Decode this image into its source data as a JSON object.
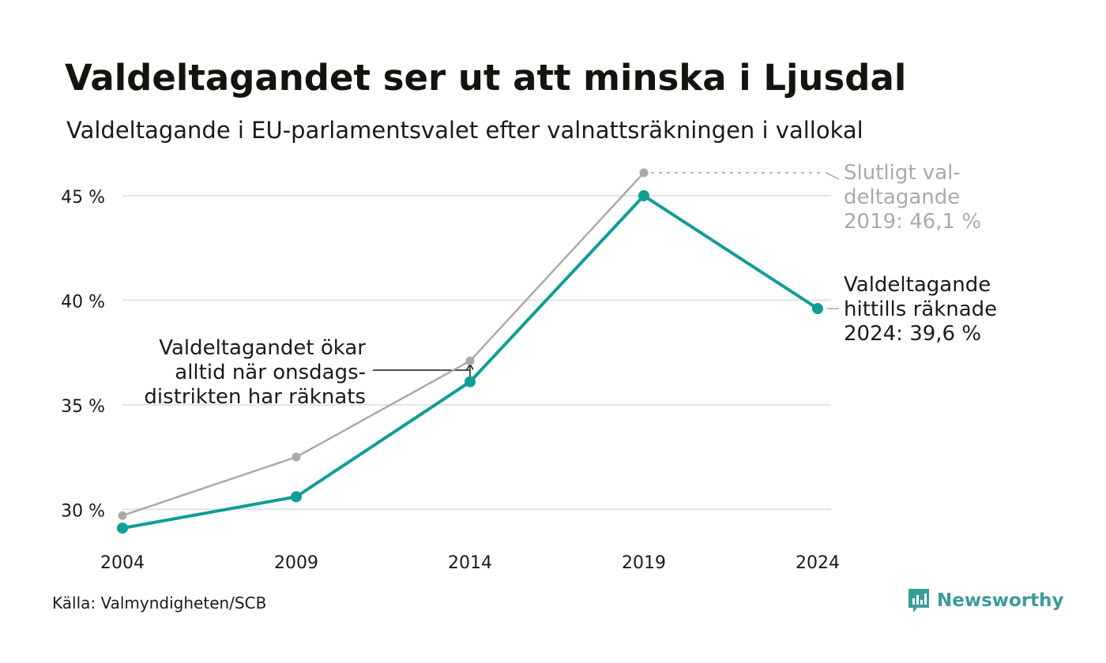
{
  "title": "Valdeltagandet ser ut att minska i Ljusdal",
  "subtitle": "Valdeltagande i EU-parlamentsvalet efter valnattsräkningen i vallokal",
  "source": "Källa: Valmyndigheten/SCB",
  "brand": {
    "name": "Newsworthy",
    "icon": "newsworthy-logo-icon",
    "color": "#3c9c99"
  },
  "chart_data": {
    "type": "line",
    "x": [
      2004,
      2009,
      2014,
      2019,
      2024
    ],
    "x_tick_labels": [
      "2004",
      "2009",
      "2014",
      "2019",
      "2024"
    ],
    "ylim": [
      28.5,
      47
    ],
    "y_ticks": [
      30,
      35,
      40,
      45
    ],
    "y_tick_labels": [
      "30 %",
      "35 %",
      "40 %",
      "45 %"
    ],
    "grid": true,
    "series": [
      {
        "key": "final",
        "color": "#aaaaaa",
        "values": [
          29.7,
          32.5,
          37.1,
          46.1,
          null
        ]
      },
      {
        "key": "counted",
        "color": "#0f9e95",
        "values": [
          29.1,
          30.6,
          36.1,
          45.0,
          39.6
        ]
      }
    ],
    "annotations": [
      {
        "key": "final_label",
        "lines": [
          "Slutligt val-",
          "deltagande",
          "2019: 46,1 %"
        ],
        "color": "#aaaaaa",
        "x": 2019,
        "y": 46.1
      },
      {
        "key": "counted_label",
        "lines": [
          "Valdeltagande",
          "hittills räknade",
          "2024: 39,6 %"
        ],
        "color": "#1a1a1a",
        "x": 2024,
        "y": 39.6
      },
      {
        "key": "wednesday_note",
        "lines": [
          "Valdeltagandet ökar",
          "alltid när onsdags-",
          "distrikten har räknats"
        ],
        "color": "#1a1a1a",
        "x": 2014
      }
    ]
  }
}
